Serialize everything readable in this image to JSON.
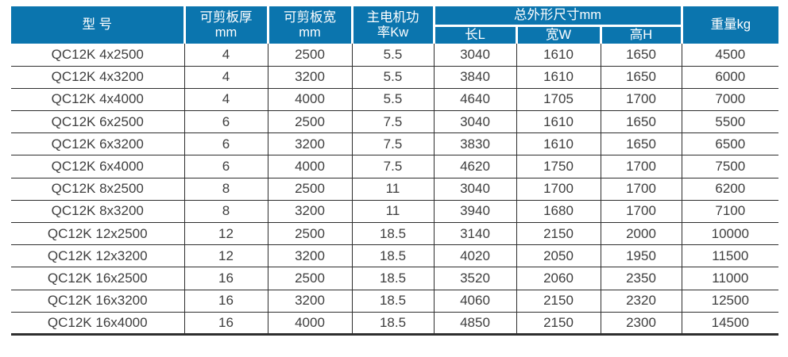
{
  "chart_data": {
    "type": "table",
    "title": "",
    "headers": {
      "model": "型 号",
      "thickness": "可剪板厚\nmm",
      "sheet_width": "可剪板宽\nmm",
      "power": "主电机功\n率Kw",
      "dimensions_group": "总外形尺寸mm",
      "length": "长L",
      "width": "宽W",
      "height": "高H",
      "weight": "重量kg"
    },
    "column_keys": [
      "model",
      "thickness-mm",
      "sheet-width-mm",
      "power-kw",
      "length-l",
      "width-w",
      "height-h",
      "weight-kg"
    ],
    "rows": [
      [
        "QC12K 4x2500",
        "4",
        "2500",
        "5.5",
        "3040",
        "1610",
        "1650",
        "4500"
      ],
      [
        "QC12K 4x3200",
        "4",
        "3200",
        "5.5",
        "3840",
        "1610",
        "1650",
        "6000"
      ],
      [
        "QC12K 4x4000",
        "4",
        "4000",
        "5.5",
        "4640",
        "1705",
        "1700",
        "7000"
      ],
      [
        "QC12K 6x2500",
        "6",
        "2500",
        "7.5",
        "3040",
        "1610",
        "1650",
        "5500"
      ],
      [
        "QC12K 6x3200",
        "6",
        "3200",
        "7.5",
        "3830",
        "1610",
        "1650",
        "6500"
      ],
      [
        "QC12K 6x4000",
        "6",
        "4000",
        "7.5",
        "4620",
        "1750",
        "1700",
        "7500"
      ],
      [
        "QC12K 8x2500",
        "8",
        "2500",
        "11",
        "3040",
        "1700",
        "1700",
        "6200"
      ],
      [
        "QC12K 8x3200",
        "8",
        "3200",
        "11",
        "3940",
        "1680",
        "1700",
        "7100"
      ],
      [
        "QC12K 12x2500",
        "12",
        "2500",
        "18.5",
        "3140",
        "2150",
        "2000",
        "10000"
      ],
      [
        "QC12K 12x3200",
        "12",
        "3200",
        "18.5",
        "4020",
        "2050",
        "1950",
        "11500"
      ],
      [
        "QC12K 16x2500",
        "16",
        "2500",
        "18.5",
        "3520",
        "2060",
        "2350",
        "11000"
      ],
      [
        "QC12K 16x3200",
        "16",
        "3200",
        "18.5",
        "4060",
        "2150",
        "2320",
        "12500"
      ],
      [
        "QC12K 16x4000",
        "16",
        "4000",
        "18.5",
        "4850",
        "2150",
        "2300",
        "14500"
      ]
    ]
  },
  "colors": {
    "header_bg": "#0b75ae",
    "header_text": "#ffffff",
    "body_text": "#3e3e3e",
    "grid_line": "#2e2e2e"
  }
}
